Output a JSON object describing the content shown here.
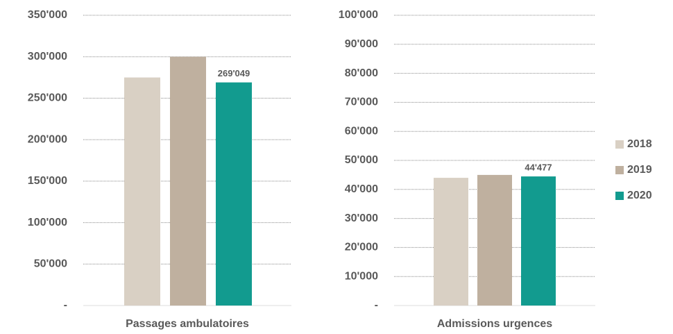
{
  "chart_data": [
    {
      "type": "bar",
      "categories": [
        "Passages ambulatoires"
      ],
      "series": [
        {
          "name": "2018",
          "color": "#d9d0c4",
          "values": [
            275000
          ]
        },
        {
          "name": "2019",
          "color": "#bfb09f",
          "values": [
            300000
          ]
        },
        {
          "name": "2020",
          "color": "#129b8f",
          "values": [
            269049
          ],
          "value_labels": [
            "269'049"
          ]
        }
      ],
      "ylim": [
        0,
        350000
      ],
      "yticks": [
        {
          "value": 0,
          "label": "-"
        },
        {
          "value": 50000,
          "label": "50'000"
        },
        {
          "value": 100000,
          "label": "100'000"
        },
        {
          "value": 150000,
          "label": "150'000"
        },
        {
          "value": 200000,
          "label": "200'000"
        },
        {
          "value": 250000,
          "label": "250'000"
        },
        {
          "value": 300000,
          "label": "300'000"
        },
        {
          "value": 350000,
          "label": "350'000"
        }
      ],
      "grid": true,
      "legend": "right"
    },
    {
      "type": "bar",
      "categories": [
        "Admissions urgences"
      ],
      "series": [
        {
          "color": "#d9d0c4",
          "values": [
            44000
          ]
        },
        {
          "color": "#bfb09f",
          "values": [
            45000
          ]
        },
        {
          "color": "#129b8f",
          "values": [
            44477
          ],
          "value_labels": [
            "44'477"
          ]
        }
      ],
      "ylim": [
        0,
        100000
      ],
      "yticks": [
        {
          "value": 0,
          "label": "-"
        },
        {
          "value": 10000,
          "label": "10'000"
        },
        {
          "value": 20000,
          "label": "20'000"
        },
        {
          "value": 30000,
          "label": "30'000"
        },
        {
          "value": 40000,
          "label": "40'000"
        },
        {
          "value": 50000,
          "label": "50'000"
        },
        {
          "value": 60000,
          "label": "60'000"
        },
        {
          "value": 70000,
          "label": "70'000"
        },
        {
          "value": 80000,
          "label": "80'000"
        },
        {
          "value": 90000,
          "label": "90'000"
        },
        {
          "value": 100000,
          "label": "100'000"
        }
      ],
      "grid": true
    }
  ]
}
